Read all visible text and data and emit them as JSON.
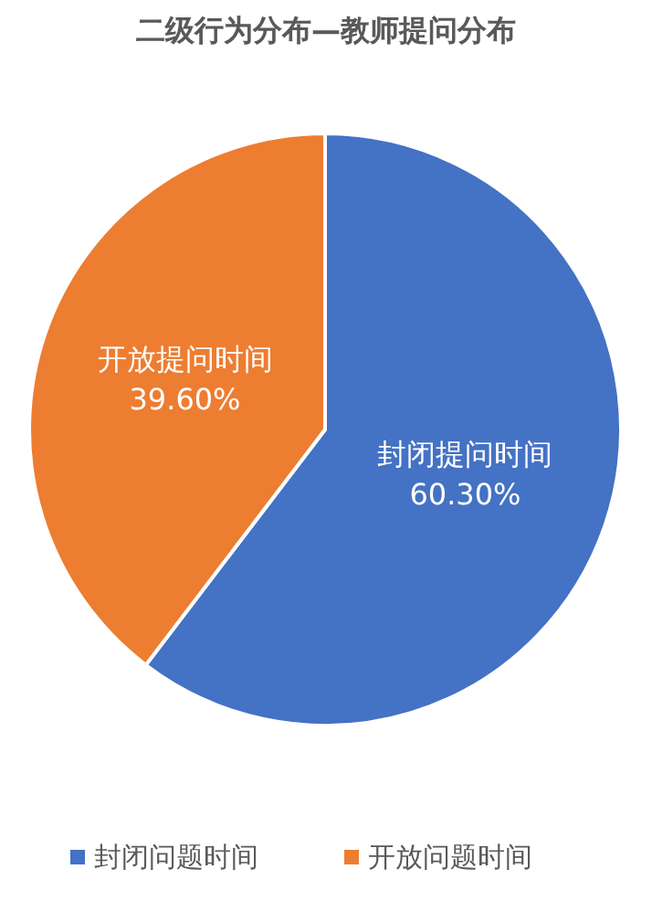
{
  "chart_data": {
    "type": "pie",
    "title": "二级行为分布—教师提问分布",
    "categories": [
      "封闭问题时间",
      "开放问题时间"
    ],
    "values": [
      60.3,
      39.6
    ],
    "colors": [
      "#4472c4",
      "#ed7d31"
    ],
    "value_labels": [
      "封闭提问时间60.30%",
      "开放提问时间39.60%"
    ],
    "legend": "bottom"
  }
}
